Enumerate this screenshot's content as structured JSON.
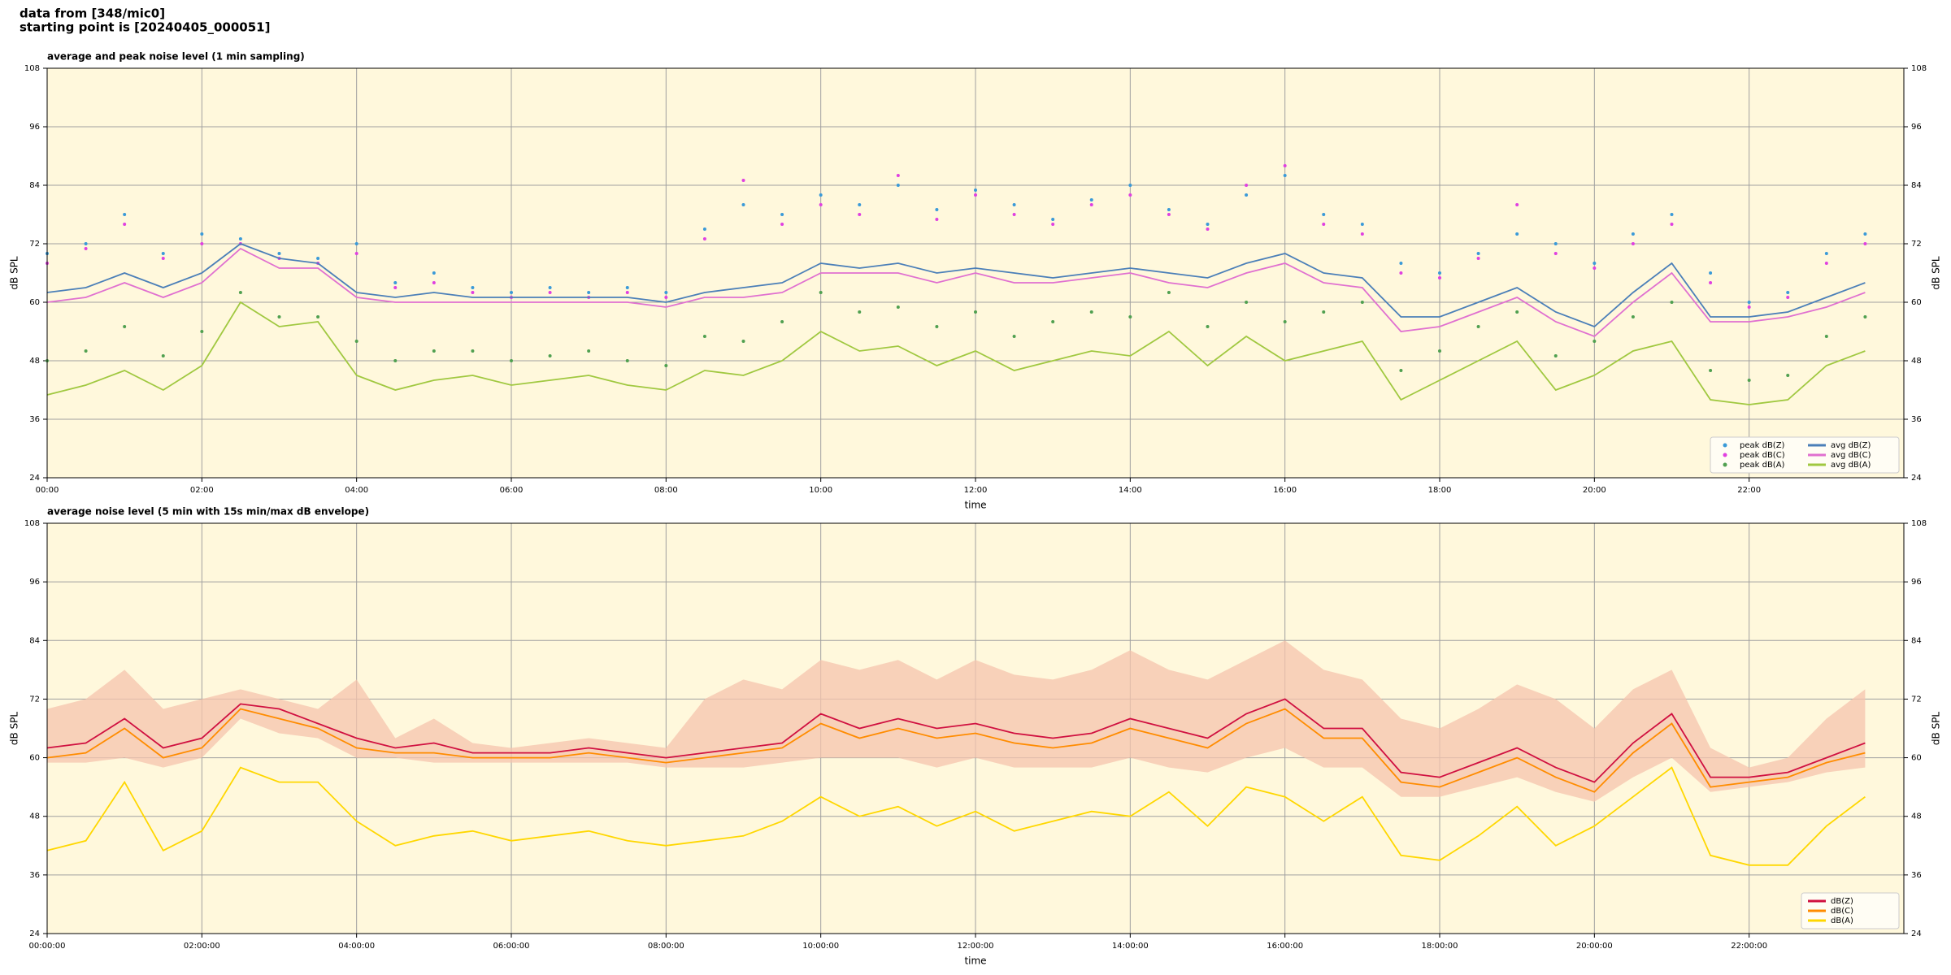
{
  "header": [
    "data from [348/mic0]",
    "starting point is [20240405_000051]"
  ],
  "chart_data": [
    {
      "type": "line",
      "title": "average and peak noise level (1 min sampling)",
      "x_label": "time",
      "y_label": "dB SPL",
      "xlim": [
        0,
        24
      ],
      "ylim": [
        24,
        108
      ],
      "xticks": [
        {
          "value": 0,
          "label": "00:00"
        },
        {
          "value": 2,
          "label": "02:00"
        },
        {
          "value": 4,
          "label": "04:00"
        },
        {
          "value": 6,
          "label": "06:00"
        },
        {
          "value": 8,
          "label": "08:00"
        },
        {
          "value": 10,
          "label": "10:00"
        },
        {
          "value": 12,
          "label": "12:00"
        },
        {
          "value": 14,
          "label": "14:00"
        },
        {
          "value": 16,
          "label": "16:00"
        },
        {
          "value": 18,
          "label": "18:00"
        },
        {
          "value": 20,
          "label": "20:00"
        },
        {
          "value": 22,
          "label": "22:00"
        }
      ],
      "yticks": [
        24,
        36,
        48,
        60,
        72,
        84,
        96,
        108
      ],
      "grid": true,
      "legend": "lower right",
      "legend_columns": 2,
      "x": [
        0,
        0.5,
        1,
        1.5,
        2,
        2.5,
        3,
        3.5,
        4,
        4.5,
        5,
        5.5,
        6,
        6.5,
        7,
        7.5,
        8,
        8.5,
        9,
        9.5,
        10,
        10.5,
        11,
        11.5,
        12,
        12.5,
        13,
        13.5,
        14,
        14.5,
        15,
        15.5,
        16,
        16.5,
        17,
        17.5,
        18,
        18.5,
        19,
        19.5,
        20,
        20.5,
        21,
        21.5,
        22,
        22.5,
        23,
        23.5
      ],
      "series": [
        {
          "name": "peak dB(Z)",
          "color": "#3a9ad8",
          "mark": "point",
          "values": [
            70,
            72,
            78,
            70,
            74,
            73,
            70,
            69,
            72,
            64,
            66,
            63,
            62,
            63,
            62,
            63,
            62,
            75,
            80,
            78,
            82,
            80,
            84,
            79,
            83,
            80,
            77,
            81,
            84,
            79,
            76,
            82,
            86,
            78,
            76,
            68,
            66,
            70,
            74,
            72,
            68,
            74,
            78,
            66,
            60,
            62,
            70,
            74
          ]
        },
        {
          "name": "peak dB(C)",
          "color": "#e040e0",
          "mark": "point",
          "values": [
            68,
            71,
            76,
            69,
            72,
            72,
            69,
            68,
            70,
            63,
            64,
            62,
            61,
            62,
            61,
            62,
            61,
            73,
            85,
            76,
            80,
            78,
            86,
            77,
            82,
            78,
            76,
            80,
            82,
            78,
            75,
            84,
            88,
            76,
            74,
            66,
            65,
            69,
            80,
            70,
            67,
            72,
            76,
            64,
            59,
            61,
            68,
            72
          ]
        },
        {
          "name": "peak dB(A)",
          "color": "#50a050",
          "mark": "point",
          "values": [
            48,
            50,
            55,
            49,
            54,
            62,
            57,
            57,
            52,
            48,
            50,
            50,
            48,
            49,
            50,
            48,
            47,
            53,
            52,
            56,
            62,
            58,
            59,
            55,
            58,
            53,
            56,
            58,
            57,
            62,
            55,
            60,
            56,
            58,
            60,
            46,
            50,
            55,
            58,
            49,
            52,
            57,
            60,
            46,
            44,
            45,
            53,
            57
          ]
        },
        {
          "name": "avg dB(Z)",
          "color": "#4b7fb8",
          "mark": "line",
          "values": [
            62,
            63,
            66,
            63,
            66,
            72,
            69,
            68,
            62,
            61,
            62,
            61,
            61,
            61,
            61,
            61,
            60,
            62,
            63,
            64,
            68,
            67,
            68,
            66,
            67,
            66,
            65,
            66,
            67,
            66,
            65,
            68,
            70,
            66,
            65,
            57,
            57,
            60,
            63,
            58,
            55,
            62,
            68,
            57,
            57,
            58,
            61,
            64
          ]
        },
        {
          "name": "avg dB(C)",
          "color": "#e070d0",
          "mark": "line",
          "values": [
            60,
            61,
            64,
            61,
            64,
            71,
            67,
            67,
            61,
            60,
            60,
            60,
            60,
            60,
            60,
            60,
            59,
            61,
            61,
            62,
            66,
            66,
            66,
            64,
            66,
            64,
            64,
            65,
            66,
            64,
            63,
            66,
            68,
            64,
            63,
            54,
            55,
            58,
            61,
            56,
            53,
            60,
            66,
            56,
            56,
            57,
            59,
            62
          ]
        },
        {
          "name": "avg dB(A)",
          "color": "#a0c840",
          "mark": "line",
          "values": [
            41,
            43,
            46,
            42,
            47,
            60,
            55,
            56,
            45,
            42,
            44,
            45,
            43,
            44,
            45,
            43,
            42,
            46,
            45,
            48,
            54,
            50,
            51,
            47,
            50,
            46,
            48,
            50,
            49,
            54,
            47,
            53,
            48,
            50,
            52,
            40,
            44,
            48,
            52,
            42,
            45,
            50,
            52,
            40,
            39,
            40,
            47,
            50
          ]
        }
      ]
    },
    {
      "type": "line",
      "title": "average noise level (5 min with 15s min/max dB envelope)",
      "x_label": "time",
      "y_label": "dB SPL",
      "xlim": [
        0,
        24
      ],
      "ylim": [
        24,
        108
      ],
      "xticks": [
        {
          "value": 0,
          "label": "00:00:00"
        },
        {
          "value": 2,
          "label": "02:00:00"
        },
        {
          "value": 4,
          "label": "04:00:00"
        },
        {
          "value": 6,
          "label": "06:00:00"
        },
        {
          "value": 8,
          "label": "08:00:00"
        },
        {
          "value": 10,
          "label": "10:00:00"
        },
        {
          "value": 12,
          "label": "12:00:00"
        },
        {
          "value": 14,
          "label": "14:00:00"
        },
        {
          "value": 16,
          "label": "16:00:00"
        },
        {
          "value": 18,
          "label": "18:00:00"
        },
        {
          "value": 20,
          "label": "20:00:00"
        },
        {
          "value": 22,
          "label": "22:00:00"
        }
      ],
      "yticks": [
        24,
        36,
        48,
        60,
        72,
        84,
        96,
        108
      ],
      "grid": true,
      "legend": "lower right",
      "legend_columns": 1,
      "x": [
        0,
        0.5,
        1,
        1.5,
        2,
        2.5,
        3,
        3.5,
        4,
        4.5,
        5,
        5.5,
        6,
        6.5,
        7,
        7.5,
        8,
        8.5,
        9,
        9.5,
        10,
        10.5,
        11,
        11.5,
        12,
        12.5,
        13,
        13.5,
        14,
        14.5,
        15,
        15.5,
        16,
        16.5,
        17,
        17.5,
        18,
        18.5,
        19,
        19.5,
        20,
        20.5,
        21,
        21.5,
        22,
        22.5,
        23,
        23.5
      ],
      "envelope": {
        "color": "#f6c4ae",
        "max": [
          70,
          72,
          78,
          70,
          72,
          74,
          72,
          70,
          76,
          64,
          68,
          63,
          62,
          63,
          64,
          63,
          62,
          72,
          76,
          74,
          80,
          78,
          80,
          76,
          80,
          77,
          76,
          78,
          82,
          78,
          76,
          80,
          84,
          78,
          76,
          68,
          66,
          70,
          75,
          72,
          66,
          74,
          78,
          62,
          58,
          60,
          68,
          74
        ],
        "min": [
          59,
          59,
          60,
          58,
          60,
          68,
          65,
          64,
          60,
          60,
          59,
          59,
          59,
          59,
          59,
          59,
          58,
          58,
          58,
          59,
          60,
          60,
          60,
          58,
          60,
          58,
          58,
          58,
          60,
          58,
          57,
          60,
          62,
          58,
          58,
          52,
          52,
          54,
          56,
          53,
          51,
          56,
          60,
          53,
          54,
          55,
          57,
          58
        ]
      },
      "series": [
        {
          "name": "dB(Z)",
          "color": "#d01040",
          "mark": "line",
          "values": [
            62,
            63,
            68,
            62,
            64,
            71,
            70,
            67,
            64,
            62,
            63,
            61,
            61,
            61,
            62,
            61,
            60,
            61,
            62,
            63,
            69,
            66,
            68,
            66,
            67,
            65,
            64,
            65,
            68,
            66,
            64,
            69,
            72,
            66,
            66,
            57,
            56,
            59,
            62,
            58,
            55,
            63,
            69,
            56,
            56,
            57,
            60,
            63
          ]
        },
        {
          "name": "dB(C)",
          "color": "#ff8c00",
          "mark": "line",
          "values": [
            60,
            61,
            66,
            60,
            62,
            70,
            68,
            66,
            62,
            61,
            61,
            60,
            60,
            60,
            61,
            60,
            59,
            60,
            61,
            62,
            67,
            64,
            66,
            64,
            65,
            63,
            62,
            63,
            66,
            64,
            62,
            67,
            70,
            64,
            64,
            55,
            54,
            57,
            60,
            56,
            53,
            61,
            67,
            54,
            55,
            56,
            59,
            61
          ]
        },
        {
          "name": "dB(A)",
          "color": "#ffd700",
          "mark": "line",
          "values": [
            41,
            43,
            55,
            41,
            45,
            58,
            55,
            55,
            47,
            42,
            44,
            45,
            43,
            44,
            45,
            43,
            42,
            43,
            44,
            47,
            52,
            48,
            50,
            46,
            49,
            45,
            47,
            49,
            48,
            53,
            46,
            54,
            52,
            47,
            52,
            40,
            39,
            44,
            50,
            42,
            46,
            52,
            58,
            40,
            38,
            38,
            46,
            52
          ]
        }
      ]
    }
  ]
}
